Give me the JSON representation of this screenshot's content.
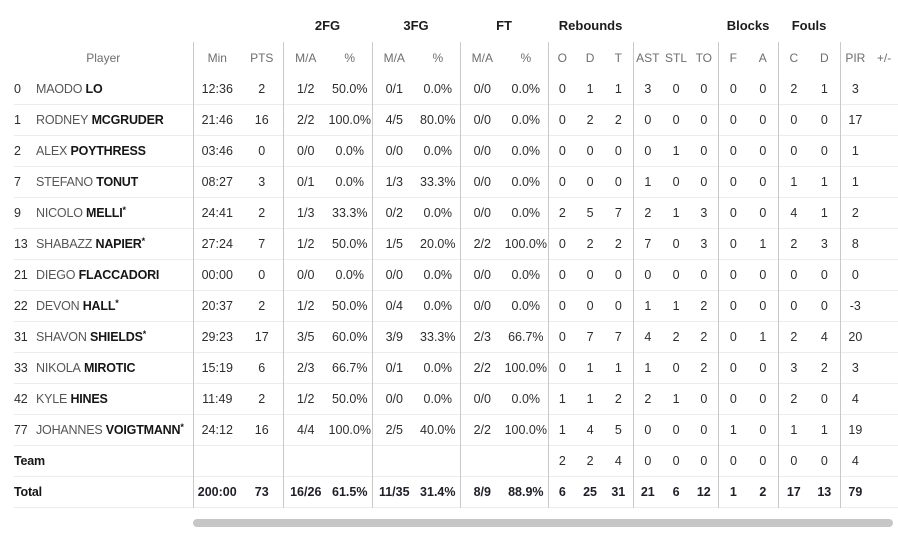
{
  "colors": {
    "divider": "#c9c9c9",
    "row_line": "#ececec",
    "header_text": "#6e6e6e",
    "primary_text": "#1c1c1c",
    "secondary_text": "#565656",
    "scrollbar": "#c6c6c6"
  },
  "table": {
    "starter_mark": "*",
    "group_headers": [
      {
        "label": "",
        "span": 3
      },
      {
        "label": "2FG",
        "span": 2
      },
      {
        "label": "3FG",
        "span": 2
      },
      {
        "label": "FT",
        "span": 2
      },
      {
        "label": "Rebounds",
        "span": 3
      },
      {
        "label": "",
        "span": 3
      },
      {
        "label": "Blocks",
        "span": 2
      },
      {
        "label": "Fouls",
        "span": 2
      },
      {
        "label": "",
        "span": 2
      }
    ],
    "columns": [
      "Player",
      "Min",
      "PTS",
      "M/A",
      "%",
      "M/A",
      "%",
      "M/A",
      "%",
      "O",
      "D",
      "T",
      "AST",
      "STL",
      "TO",
      "F",
      "A",
      "C",
      "D",
      "PIR",
      "+/-"
    ],
    "stat_keys": [
      "min",
      "pts",
      "2fg-ma",
      "2fg-pct",
      "3fg-ma",
      "3fg-pct",
      "ft-ma",
      "ft-pct",
      "reb-o",
      "reb-d",
      "reb-t",
      "ast",
      "stl",
      "to",
      "blk-f",
      "blk-a",
      "foul-c",
      "foul-d",
      "pir",
      "plus-minus"
    ],
    "players": [
      {
        "number": "0",
        "first": "MAODO",
        "last": "LO",
        "starter": false,
        "stats": [
          "12:36",
          "2",
          "1/2",
          "50.0%",
          "0/1",
          "0.0%",
          "0/0",
          "0.0%",
          "0",
          "1",
          "1",
          "3",
          "0",
          "0",
          "0",
          "0",
          "2",
          "1",
          "3",
          ""
        ]
      },
      {
        "number": "1",
        "first": "RODNEY",
        "last": "MCGRUDER",
        "starter": false,
        "stats": [
          "21:46",
          "16",
          "2/2",
          "100.0%",
          "4/5",
          "80.0%",
          "0/0",
          "0.0%",
          "0",
          "2",
          "2",
          "0",
          "0",
          "0",
          "0",
          "0",
          "0",
          "0",
          "17",
          ""
        ]
      },
      {
        "number": "2",
        "first": "ALEX",
        "last": "POYTHRESS",
        "starter": false,
        "stats": [
          "03:46",
          "0",
          "0/0",
          "0.0%",
          "0/0",
          "0.0%",
          "0/0",
          "0.0%",
          "0",
          "0",
          "0",
          "0",
          "1",
          "0",
          "0",
          "0",
          "0",
          "0",
          "1",
          ""
        ]
      },
      {
        "number": "7",
        "first": "STEFANO",
        "last": "TONUT",
        "starter": false,
        "stats": [
          "08:27",
          "3",
          "0/1",
          "0.0%",
          "1/3",
          "33.3%",
          "0/0",
          "0.0%",
          "0",
          "0",
          "0",
          "1",
          "0",
          "0",
          "0",
          "0",
          "1",
          "1",
          "1",
          ""
        ]
      },
      {
        "number": "9",
        "first": "NICOLO",
        "last": "MELLI",
        "starter": true,
        "stats": [
          "24:41",
          "2",
          "1/3",
          "33.3%",
          "0/2",
          "0.0%",
          "0/0",
          "0.0%",
          "2",
          "5",
          "7",
          "2",
          "1",
          "3",
          "0",
          "0",
          "4",
          "1",
          "2",
          ""
        ]
      },
      {
        "number": "13",
        "first": "SHABAZZ",
        "last": "NAPIER",
        "starter": true,
        "stats": [
          "27:24",
          "7",
          "1/2",
          "50.0%",
          "1/5",
          "20.0%",
          "2/2",
          "100.0%",
          "0",
          "2",
          "2",
          "7",
          "0",
          "3",
          "0",
          "1",
          "2",
          "3",
          "8",
          ""
        ]
      },
      {
        "number": "21",
        "first": "DIEGO",
        "last": "FLACCADORI",
        "starter": false,
        "stats": [
          "00:00",
          "0",
          "0/0",
          "0.0%",
          "0/0",
          "0.0%",
          "0/0",
          "0.0%",
          "0",
          "0",
          "0",
          "0",
          "0",
          "0",
          "0",
          "0",
          "0",
          "0",
          "0",
          ""
        ]
      },
      {
        "number": "22",
        "first": "DEVON",
        "last": "HALL",
        "starter": true,
        "stats": [
          "20:37",
          "2",
          "1/2",
          "50.0%",
          "0/4",
          "0.0%",
          "0/0",
          "0.0%",
          "0",
          "0",
          "0",
          "1",
          "1",
          "2",
          "0",
          "0",
          "0",
          "0",
          "-3",
          ""
        ]
      },
      {
        "number": "31",
        "first": "SHAVON",
        "last": "SHIELDS",
        "starter": true,
        "stats": [
          "29:23",
          "17",
          "3/5",
          "60.0%",
          "3/9",
          "33.3%",
          "2/3",
          "66.7%",
          "0",
          "7",
          "7",
          "4",
          "2",
          "2",
          "0",
          "1",
          "2",
          "4",
          "20",
          ""
        ]
      },
      {
        "number": "33",
        "first": "NIKOLA",
        "last": "MIROTIC",
        "starter": false,
        "stats": [
          "15:19",
          "6",
          "2/3",
          "66.7%",
          "0/1",
          "0.0%",
          "2/2",
          "100.0%",
          "0",
          "1",
          "1",
          "1",
          "0",
          "2",
          "0",
          "0",
          "3",
          "2",
          "3",
          ""
        ]
      },
      {
        "number": "42",
        "first": "KYLE",
        "last": "HINES",
        "starter": false,
        "stats": [
          "11:49",
          "2",
          "1/2",
          "50.0%",
          "0/0",
          "0.0%",
          "0/0",
          "0.0%",
          "1",
          "1",
          "2",
          "2",
          "1",
          "0",
          "0",
          "0",
          "2",
          "0",
          "4",
          ""
        ]
      },
      {
        "number": "77",
        "first": "JOHANNES",
        "last": "VOIGTMANN",
        "starter": true,
        "stats": [
          "24:12",
          "16",
          "4/4",
          "100.0%",
          "2/5",
          "40.0%",
          "2/2",
          "100.0%",
          "1",
          "4",
          "5",
          "0",
          "0",
          "0",
          "1",
          "0",
          "1",
          "1",
          "19",
          ""
        ]
      }
    ],
    "team_row": {
      "label": "Team",
      "stats": [
        "",
        "",
        "",
        "",
        "",
        "",
        "",
        "",
        "2",
        "2",
        "4",
        "0",
        "0",
        "0",
        "0",
        "0",
        "0",
        "0",
        "4",
        ""
      ]
    },
    "total_row": {
      "label": "Total",
      "stats": [
        "200:00",
        "73",
        "16/26",
        "61.5%",
        "11/35",
        "31.4%",
        "8/9",
        "88.9%",
        "6",
        "25",
        "31",
        "21",
        "6",
        "12",
        "1",
        "2",
        "17",
        "13",
        "79",
        ""
      ]
    }
  }
}
